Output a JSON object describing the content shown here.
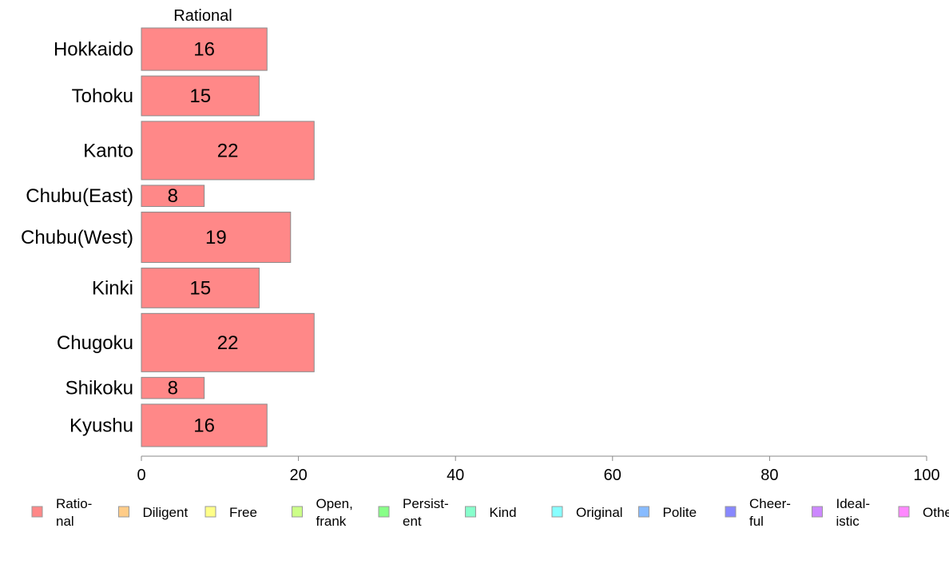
{
  "chart_data": {
    "type": "bar",
    "orientation": "horizontal",
    "column_header": "Rational",
    "categories": [
      "Hokkaido",
      "Tohoku",
      "Kanto",
      "Chubu(East)",
      "Chubu(West)",
      "Kinki",
      "Chugoku",
      "Shikoku",
      "Kyushu"
    ],
    "series": [
      {
        "name": "Rational",
        "values": [
          16,
          15,
          22,
          8,
          19,
          15,
          22,
          8,
          16
        ],
        "color": "#ff8888"
      }
    ],
    "bar_thickness_relative": [
      16,
      15,
      22,
      8,
      19,
      15,
      22,
      8,
      16
    ],
    "xlim": [
      0,
      100
    ],
    "xticks": [
      0,
      20,
      40,
      60,
      80,
      100
    ],
    "grid": false,
    "legend_position": "bottom",
    "legend": [
      {
        "lines": [
          "Ratio-",
          "nal"
        ],
        "color": "#ff8888"
      },
      {
        "lines": [
          "Diligent"
        ],
        "color": "#ffcc88"
      },
      {
        "lines": [
          "Free"
        ],
        "color": "#ffff88"
      },
      {
        "lines": [
          "Open,",
          "frank"
        ],
        "color": "#ccff88"
      },
      {
        "lines": [
          "Persist-",
          "ent"
        ],
        "color": "#88ff88"
      },
      {
        "lines": [
          "Kind"
        ],
        "color": "#88ffcc"
      },
      {
        "lines": [
          "Original"
        ],
        "color": "#88ffff"
      },
      {
        "lines": [
          "Polite"
        ],
        "color": "#88bbff"
      },
      {
        "lines": [
          "Cheer-",
          "ful"
        ],
        "color": "#8888ff"
      },
      {
        "lines": [
          "Ideal-",
          "istic"
        ],
        "color": "#cc88ff"
      },
      {
        "lines": [
          "Other"
        ],
        "color": "#ff88ff"
      }
    ]
  }
}
